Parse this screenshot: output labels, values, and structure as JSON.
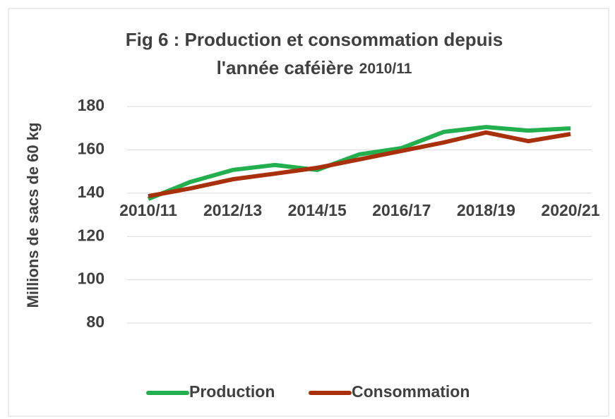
{
  "chart_data": {
    "type": "line",
    "title": [
      "Fig 6 : Production et consommation depuis",
      "l'année caféière",
      "2010/11"
    ],
    "ylabel": "Millions de sacs de 60 kg",
    "categories": [
      "2010/11",
      null,
      "2012/13",
      null,
      "2014/15",
      null,
      "2016/17",
      null,
      "2018/19",
      null,
      "2020/21"
    ],
    "series": [
      {
        "name": "Production",
        "color": "#22b04e",
        "values": [
          137.3,
          145.2,
          150.7,
          153,
          150.7,
          157.9,
          160.8,
          168.3,
          170.5,
          168.9,
          169.9
        ]
      },
      {
        "name": "Consommation",
        "color": "#a8300b",
        "values": [
          138.6,
          142.2,
          146.4,
          149,
          151.7,
          155.6,
          159.5,
          163.4,
          168,
          164,
          167.3
        ]
      }
    ],
    "ylim": [
      80,
      180
    ],
    "yticks": [
      80,
      100,
      120,
      140,
      160,
      180
    ],
    "grid": true,
    "legend": "bottom"
  }
}
